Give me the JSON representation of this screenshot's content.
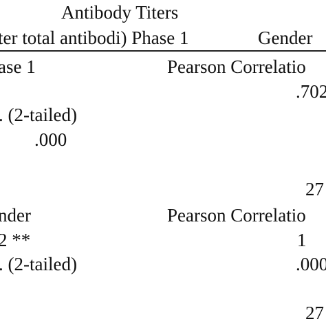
{
  "header": {
    "title": "Antibody Titers",
    "col_left": "ter total antibodi) Phase 1",
    "col_right": "Gender"
  },
  "rows": [
    {
      "label": "ase 1",
      "stat_label": "Pearson Correlatio",
      "correlation": ".702",
      "sig_label": ". (2-tailed)",
      "sig_value": ".000",
      "n_value": "27"
    },
    {
      "label": "nder",
      "stat_label": "Pearson Correlatio",
      "correlation_left": "2 **",
      "correlation_right": "1",
      "sig_label": ". (2-tailed)",
      "sig_value": ".000",
      "n_value": "27"
    }
  ]
}
